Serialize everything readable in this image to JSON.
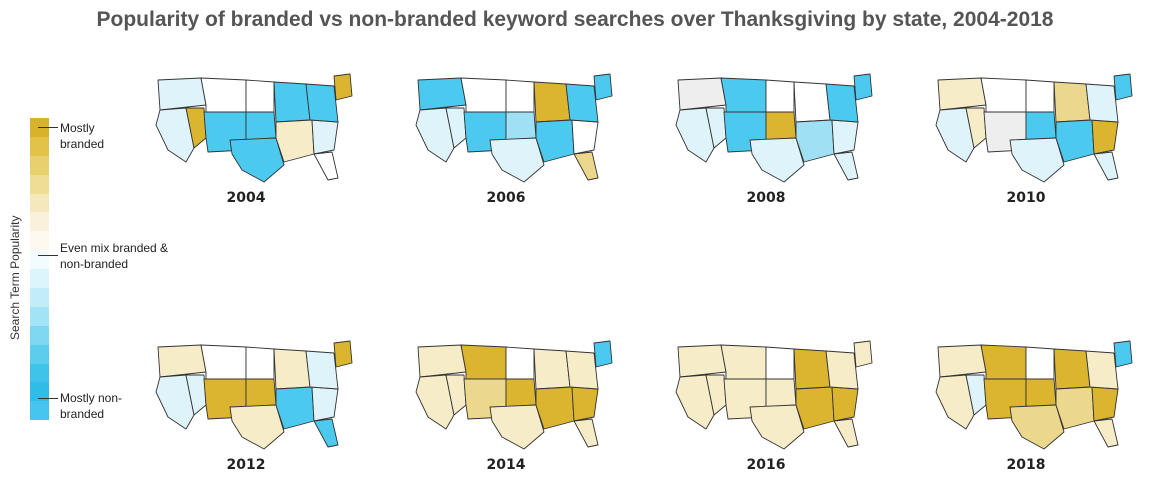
{
  "title": "Popularity of branded vs non-branded keyword searches over Thanksgiving by state, 2004-2018",
  "legend": {
    "axis_label": "Search Term Popularity",
    "top_label": "Mostly branded",
    "mid_label": "Even mix branded & non-branded",
    "bottom_label": "Mostly non-branded",
    "scale_colors": [
      "#d9b22b",
      "#e3c24a",
      "#e9d06f",
      "#efdd95",
      "#f4e8bc",
      "#f9f1dc",
      "#fdf9ef",
      "#f2fbfd",
      "#dcf4fb",
      "#c1ecf8",
      "#a2e3f5",
      "#7fd8f2",
      "#5ccded",
      "#3fc3ea",
      "#2fbde8",
      "#46c6ee"
    ]
  },
  "colors": {
    "strong_branded": "#dbb530",
    "mid_branded": "#ecd88c",
    "light_branded": "#f6ecc8",
    "neutral": "#ffffff",
    "grey": "#eeeeee",
    "light_nonbranded": "#dff3fa",
    "mid_nonbranded": "#9fe0f4",
    "strong_nonbranded": "#4cc9ee"
  },
  "maps": [
    {
      "year": "2004",
      "fills": {
        "northwest": "light_nonbranded",
        "west": "light_nonbranded",
        "mountain_n": "neutral",
        "mountain_s": "strong_nonbranded",
        "plains_n": "neutral",
        "plains_s": "strong_nonbranded",
        "texas": "strong_nonbranded",
        "midwest": "strong_nonbranded",
        "south": "light_branded",
        "southeast": "light_nonbranded",
        "northeast": "strong_nonbranded",
        "new_england": "strong_branded",
        "florida": "neutral",
        "nevada": "strong_branded"
      }
    },
    {
      "year": "2006",
      "fills": {
        "northwest": "strong_nonbranded",
        "west": "light_nonbranded",
        "mountain_n": "neutral",
        "mountain_s": "strong_nonbranded",
        "plains_n": "neutral",
        "plains_s": "mid_nonbranded",
        "texas": "light_nonbranded",
        "midwest": "strong_branded",
        "south": "strong_nonbranded",
        "southeast": "neutral",
        "northeast": "strong_nonbranded",
        "new_england": "strong_nonbranded",
        "florida": "mid_branded",
        "nevada": "light_nonbranded"
      }
    },
    {
      "year": "2008",
      "fills": {
        "northwest": "grey",
        "west": "light_nonbranded",
        "mountain_n": "strong_nonbranded",
        "mountain_s": "strong_nonbranded",
        "plains_n": "neutral",
        "plains_s": "strong_branded",
        "texas": "light_nonbranded",
        "midwest": "neutral",
        "south": "mid_nonbranded",
        "southeast": "light_nonbranded",
        "northeast": "strong_nonbranded",
        "new_england": "strong_nonbranded",
        "florida": "light_nonbranded",
        "nevada": "light_nonbranded"
      }
    },
    {
      "year": "2010",
      "fills": {
        "northwest": "light_branded",
        "west": "light_nonbranded",
        "mountain_n": "neutral",
        "mountain_s": "grey",
        "plains_n": "neutral",
        "plains_s": "strong_nonbranded",
        "texas": "light_nonbranded",
        "midwest": "mid_branded",
        "south": "strong_nonbranded",
        "southeast": "strong_branded",
        "northeast": "light_nonbranded",
        "new_england": "strong_nonbranded",
        "florida": "light_nonbranded",
        "nevada": "light_branded"
      }
    },
    {
      "year": "2012",
      "fills": {
        "northwest": "light_branded",
        "west": "light_nonbranded",
        "mountain_n": "neutral",
        "mountain_s": "strong_branded",
        "plains_n": "neutral",
        "plains_s": "strong_branded",
        "texas": "light_branded",
        "midwest": "light_branded",
        "south": "strong_nonbranded",
        "southeast": "light_nonbranded",
        "northeast": "light_nonbranded",
        "new_england": "strong_branded",
        "florida": "strong_nonbranded",
        "nevada": "light_nonbranded"
      }
    },
    {
      "year": "2014",
      "fills": {
        "northwest": "light_branded",
        "west": "light_branded",
        "mountain_n": "strong_branded",
        "mountain_s": "mid_branded",
        "plains_n": "neutral",
        "plains_s": "strong_branded",
        "texas": "light_branded",
        "midwest": "light_branded",
        "south": "strong_branded",
        "southeast": "strong_branded",
        "northeast": "light_branded",
        "new_england": "strong_nonbranded",
        "florida": "light_branded",
        "nevada": "light_branded"
      }
    },
    {
      "year": "2016",
      "fills": {
        "northwest": "light_branded",
        "west": "light_branded",
        "mountain_n": "light_branded",
        "mountain_s": "light_branded",
        "plains_n": "neutral",
        "plains_s": "light_branded",
        "texas": "light_branded",
        "midwest": "strong_branded",
        "south": "strong_branded",
        "southeast": "strong_branded",
        "northeast": "light_branded",
        "new_england": "light_branded",
        "florida": "light_branded",
        "nevada": "light_branded"
      }
    },
    {
      "year": "2018",
      "fills": {
        "northwest": "light_branded",
        "west": "light_branded",
        "mountain_n": "strong_branded",
        "mountain_s": "strong_branded",
        "plains_n": "neutral",
        "plains_s": "strong_branded",
        "texas": "mid_branded",
        "midwest": "strong_branded",
        "south": "mid_branded",
        "southeast": "strong_branded",
        "northeast": "light_branded",
        "new_england": "strong_nonbranded",
        "florida": "light_branded",
        "nevada": "light_nonbranded"
      }
    }
  ]
}
